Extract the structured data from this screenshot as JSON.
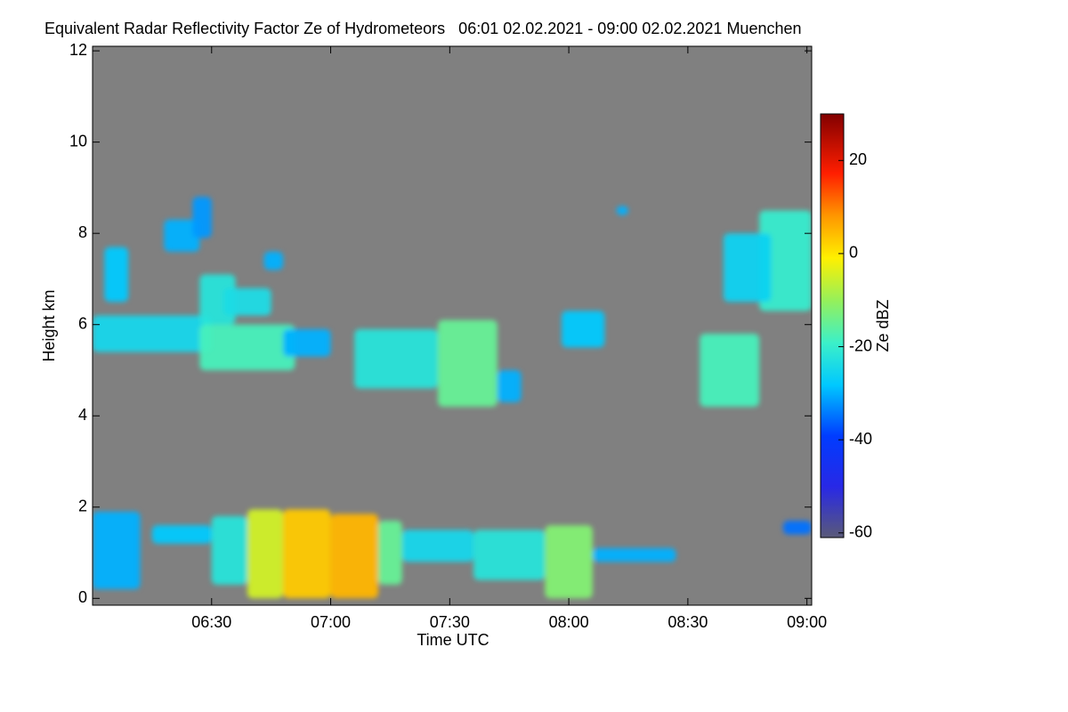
{
  "chart_data": {
    "type": "heatmap",
    "title": "Equivalent Radar Reflectivity Factor Ze of Hydrometeors   06:01 02.02.2021 - 09:00 02.02.2021 Muenchen",
    "x_label": "Time UTC",
    "y_label": "Height km",
    "xlim": [
      6.0,
      9.02
    ],
    "xticks": [
      {
        "value": 6.5,
        "label": "06:30"
      },
      {
        "value": 7.0,
        "label": "07:00"
      },
      {
        "value": 7.5,
        "label": "07:30"
      },
      {
        "value": 8.0,
        "label": "08:00"
      },
      {
        "value": 8.5,
        "label": "08:30"
      },
      {
        "value": 9.0,
        "label": "09:00"
      }
    ],
    "ylim": [
      -0.15,
      12.1
    ],
    "yticks": [
      0,
      2,
      4,
      6,
      8,
      10,
      12
    ],
    "colorbar": {
      "label": "Ze dBZ",
      "lim": [
        -61,
        30
      ],
      "ticks": [
        -60,
        -40,
        -20,
        0,
        20
      ]
    },
    "background": "#808080",
    "cells": [
      {
        "x": [
          6.0,
          6.5
        ],
        "y": [
          5.4,
          6.2
        ],
        "value": -25
      },
      {
        "x": [
          6.05,
          6.15
        ],
        "y": [
          6.5,
          7.7
        ],
        "value": -28
      },
      {
        "x": [
          6.45,
          6.85
        ],
        "y": [
          5.0,
          6.0
        ],
        "value": -18
      },
      {
        "x": [
          6.45,
          6.6
        ],
        "y": [
          6.0,
          7.1
        ],
        "value": -22
      },
      {
        "x": [
          6.55,
          6.75
        ],
        "y": [
          6.2,
          6.8
        ],
        "value": -24
      },
      {
        "x": [
          6.3,
          6.45
        ],
        "y": [
          7.6,
          8.3
        ],
        "value": -30
      },
      {
        "x": [
          6.42,
          6.5
        ],
        "y": [
          7.9,
          8.8
        ],
        "value": -32
      },
      {
        "x": [
          6.72,
          6.8
        ],
        "y": [
          7.2,
          7.6
        ],
        "value": -30
      },
      {
        "x": [
          6.8,
          7.0
        ],
        "y": [
          5.3,
          5.9
        ],
        "value": -30
      },
      {
        "x": [
          7.1,
          7.45
        ],
        "y": [
          4.6,
          5.9
        ],
        "value": -22
      },
      {
        "x": [
          7.45,
          7.7
        ],
        "y": [
          4.2,
          6.1
        ],
        "value": -15
      },
      {
        "x": [
          7.7,
          7.8
        ],
        "y": [
          4.3,
          5.0
        ],
        "value": -30
      },
      {
        "x": [
          7.97,
          8.15
        ],
        "y": [
          5.5,
          6.3
        ],
        "value": -28
      },
      {
        "x": [
          8.2,
          8.25
        ],
        "y": [
          8.4,
          8.6
        ],
        "value": -30
      },
      {
        "x": [
          8.55,
          8.8
        ],
        "y": [
          4.2,
          5.8
        ],
        "value": -18
      },
      {
        "x": [
          8.8,
          9.02
        ],
        "y": [
          6.3,
          8.5
        ],
        "value": -20
      },
      {
        "x": [
          8.65,
          8.85
        ],
        "y": [
          6.5,
          8.0
        ],
        "value": -26
      },
      {
        "x": [
          6.0,
          6.2
        ],
        "y": [
          0.2,
          1.9
        ],
        "value": -30
      },
      {
        "x": [
          6.25,
          6.5
        ],
        "y": [
          1.2,
          1.6
        ],
        "value": -28
      },
      {
        "x": [
          6.5,
          6.65
        ],
        "y": [
          0.3,
          1.8
        ],
        "value": -22
      },
      {
        "x": [
          6.65,
          6.8
        ],
        "y": [
          0.0,
          1.95
        ],
        "value": -5
      },
      {
        "x": [
          6.8,
          7.0
        ],
        "y": [
          0.0,
          1.95
        ],
        "value": 3
      },
      {
        "x": [
          7.0,
          7.2
        ],
        "y": [
          0.0,
          1.85
        ],
        "value": 5
      },
      {
        "x": [
          7.2,
          7.3
        ],
        "y": [
          0.3,
          1.7
        ],
        "value": -15
      },
      {
        "x": [
          7.3,
          7.6
        ],
        "y": [
          0.8,
          1.5
        ],
        "value": -25
      },
      {
        "x": [
          7.6,
          7.9
        ],
        "y": [
          0.4,
          1.5
        ],
        "value": -22
      },
      {
        "x": [
          7.9,
          8.1
        ],
        "y": [
          0.0,
          1.6
        ],
        "value": -12
      },
      {
        "x": [
          8.1,
          8.45
        ],
        "y": [
          0.8,
          1.1
        ],
        "value": -30
      },
      {
        "x": [
          8.9,
          9.02
        ],
        "y": [
          1.4,
          1.7
        ],
        "value": -35
      }
    ]
  }
}
